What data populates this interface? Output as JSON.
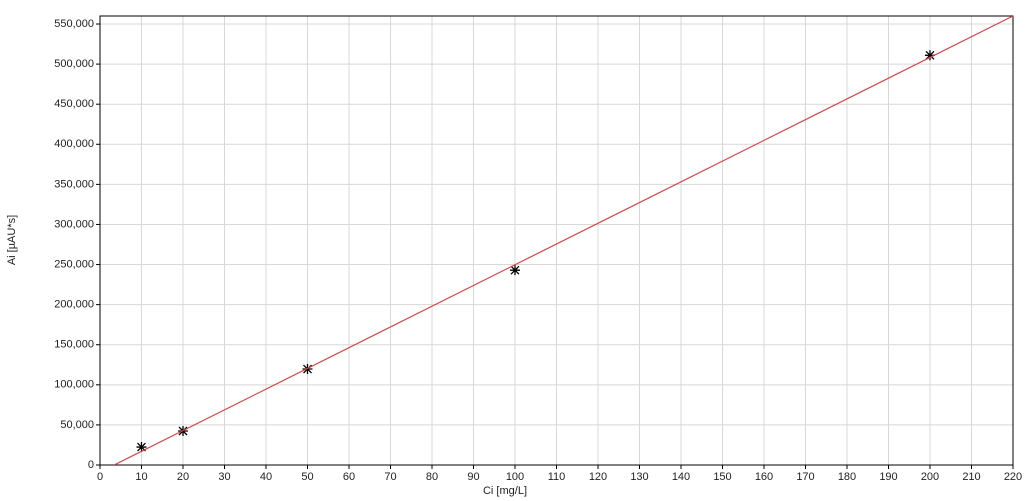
{
  "chart_data": {
    "type": "scatter",
    "x_label": "Ci [mg/L]",
    "y_label": "Ai [µAU*s]",
    "series": [
      {
        "kind": "marker",
        "color": "#000000",
        "x": [
          10,
          20,
          50,
          100,
          200
        ],
        "values": [
          22400,
          42400,
          119700,
          243000,
          511000
        ]
      },
      {
        "kind": "line",
        "color": "#d0474a",
        "x": [
          3.4,
          220
        ],
        "values": [
          0,
          560000
        ]
      }
    ],
    "xlim": [
      0,
      220
    ],
    "ylim": [
      0,
      560000
    ],
    "xticks": [
      0,
      10,
      20,
      30,
      40,
      50,
      60,
      70,
      80,
      90,
      100,
      110,
      120,
      130,
      140,
      150,
      160,
      170,
      180,
      190,
      200,
      210,
      220
    ],
    "yticks": [
      0,
      {
        "value": 50000,
        "label": "50,000"
      },
      {
        "value": 100000,
        "label": "100,000"
      },
      {
        "value": 150000,
        "label": "150,000"
      },
      {
        "value": 200000,
        "label": "200,000"
      },
      {
        "value": 250000,
        "label": "250,000"
      },
      {
        "value": 300000,
        "label": "300,000"
      },
      {
        "value": 350000,
        "label": "350,000"
      },
      {
        "value": 400000,
        "label": "400,000"
      },
      {
        "value": 450000,
        "label": "450,000"
      },
      {
        "value": 500000,
        "label": "500,000"
      },
      {
        "value": 550000,
        "label": "550,000"
      }
    ],
    "grid": true
  }
}
